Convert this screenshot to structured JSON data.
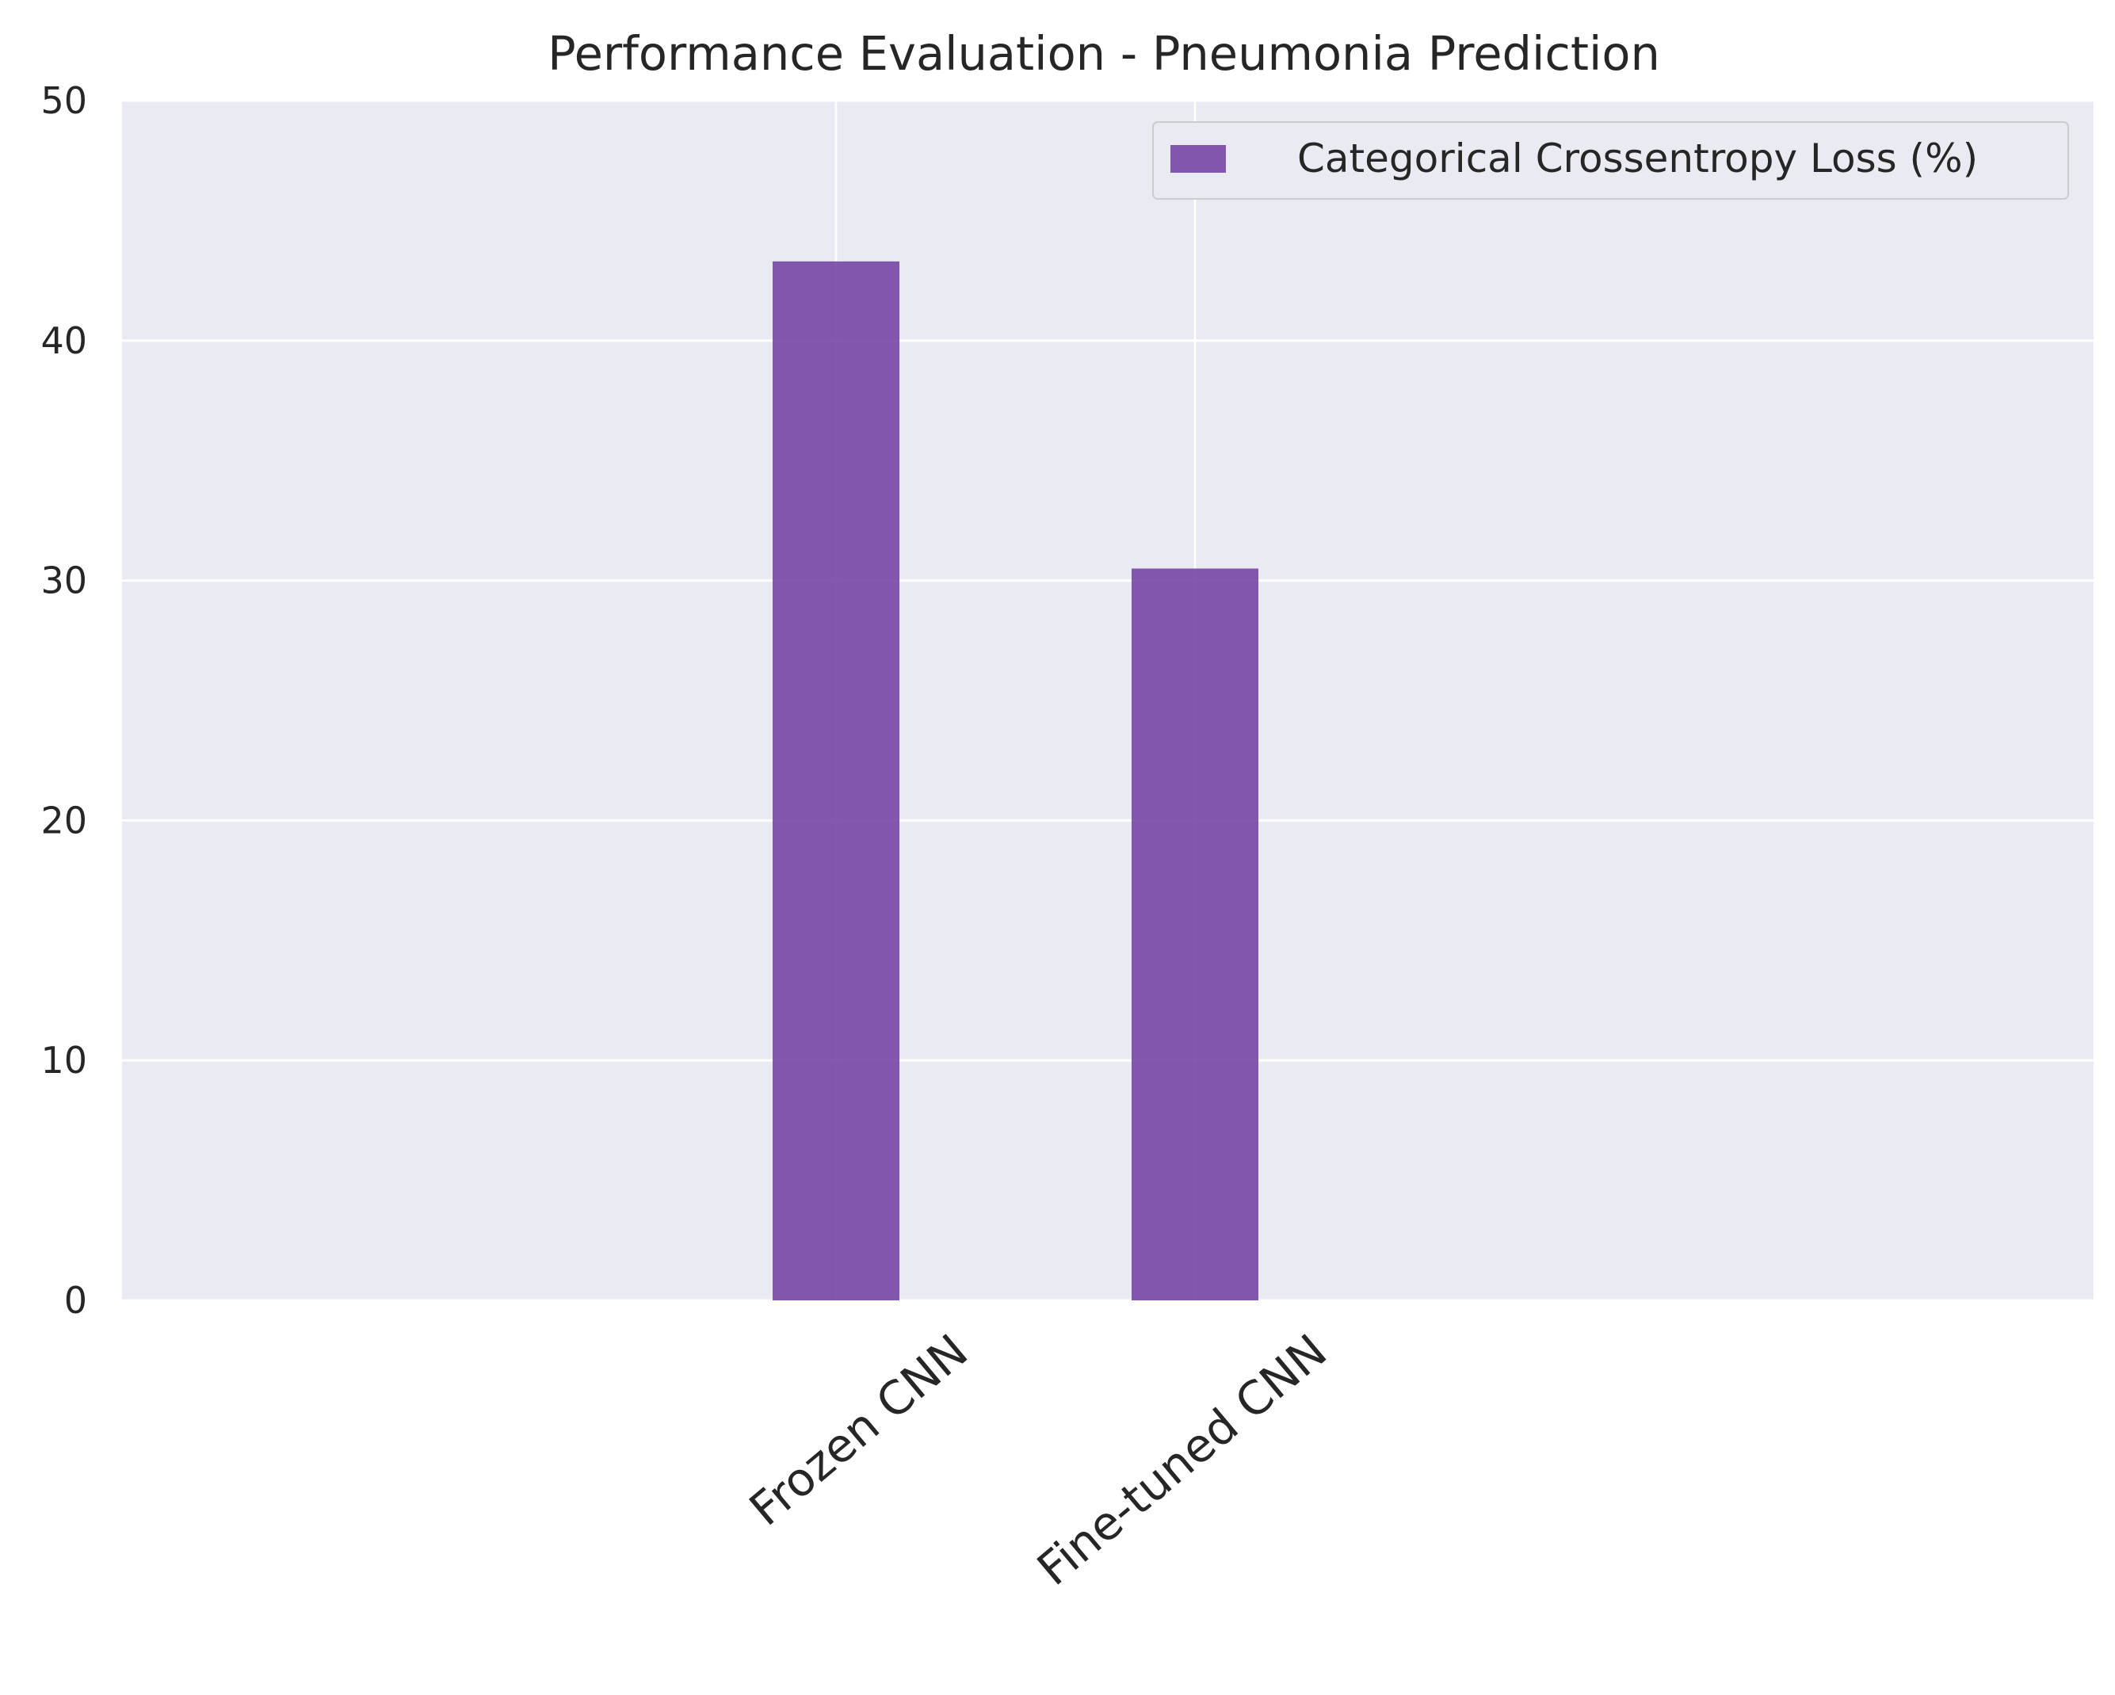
{
  "chart_data": {
    "type": "bar",
    "title": "Performance Evaluation - Pneumonia Prediction",
    "xlabel": "",
    "ylabel": "",
    "categories": [
      "Frozen CNN",
      "Fine-tuned CNN"
    ],
    "series": [
      {
        "name": "Categorical Crossentropy Loss (%)",
        "values": [
          43.3,
          30.5
        ],
        "color": "#7846a5"
      }
    ],
    "ylim": [
      0,
      50
    ],
    "yticks": [
      0,
      10,
      20,
      30,
      40,
      50
    ],
    "grid": true,
    "legend_position": "top-right",
    "background_color": "#eaeaf2",
    "grid_color": "#ffffff"
  }
}
